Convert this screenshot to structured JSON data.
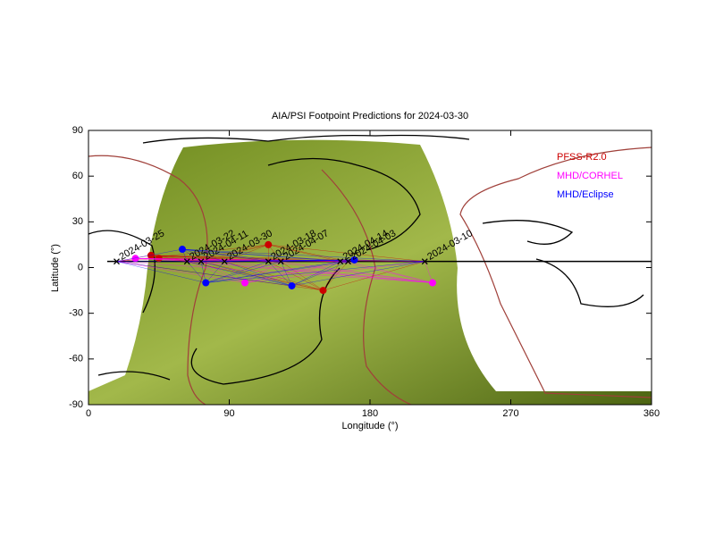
{
  "chart_data": {
    "type": "scatter",
    "title": "AIA/PSI Footpoint Predictions for 2024-03-30",
    "xlabel": "Longitude (°)",
    "ylabel": "Latitude (°)",
    "xlim": [
      0,
      360
    ],
    "ylim": [
      -90,
      90
    ],
    "xticks": [
      0,
      90,
      180,
      270,
      360
    ],
    "yticks": [
      -90,
      -60,
      -30,
      0,
      30,
      60,
      90
    ],
    "legend": "upper right",
    "trajectory": {
      "color": "#000000",
      "lat": 4,
      "lon": [
        12,
        360
      ]
    },
    "annotations": [
      {
        "text": "2024-03-25",
        "x": 18,
        "y": 4
      },
      {
        "text": "2024-03-22",
        "x": 63,
        "y": 4
      },
      {
        "text": "2024-04-11",
        "x": 72,
        "y": 4
      },
      {
        "text": "2024-03-30",
        "x": 87,
        "y": 4
      },
      {
        "text": "2024-03-18",
        "x": 115,
        "y": 4
      },
      {
        "text": "2024-04-07",
        "x": 123,
        "y": 4
      },
      {
        "text": "2024-04-14",
        "x": 161,
        "y": 4
      },
      {
        "text": "2024-04-03",
        "x": 166,
        "y": 4
      },
      {
        "text": "2024-03-10",
        "x": 215,
        "y": 4
      }
    ],
    "series": [
      {
        "name": "PFSS-R2.0",
        "color": "#cc0000",
        "x": [
          40,
          45,
          115,
          150
        ],
        "values": [
          8,
          6,
          15,
          -15
        ]
      },
      {
        "name": "MHD/CORHEL",
        "color": "#ff00ff",
        "x": [
          30,
          100,
          220
        ],
        "values": [
          6,
          -10,
          -10
        ]
      },
      {
        "name": "MHD/Eclipse",
        "color": "#0000ff",
        "x": [
          60,
          75,
          130,
          170
        ],
        "values": [
          12,
          -10,
          -12,
          5
        ]
      }
    ]
  }
}
